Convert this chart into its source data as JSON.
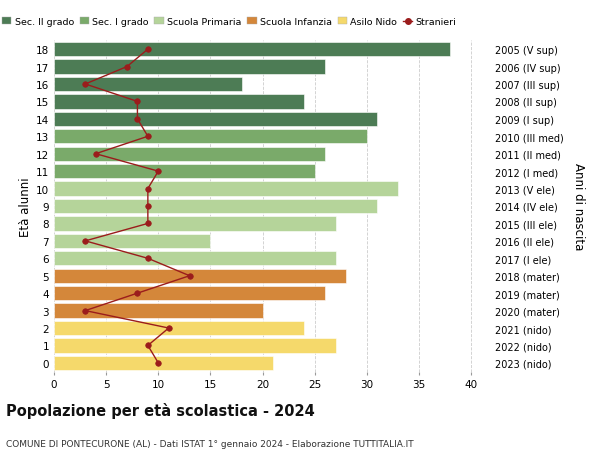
{
  "ages": [
    18,
    17,
    16,
    15,
    14,
    13,
    12,
    11,
    10,
    9,
    8,
    7,
    6,
    5,
    4,
    3,
    2,
    1,
    0
  ],
  "years": [
    "2005 (V sup)",
    "2006 (IV sup)",
    "2007 (III sup)",
    "2008 (II sup)",
    "2009 (I sup)",
    "2010 (III med)",
    "2011 (II med)",
    "2012 (I med)",
    "2013 (V ele)",
    "2014 (IV ele)",
    "2015 (III ele)",
    "2016 (II ele)",
    "2017 (I ele)",
    "2018 (mater)",
    "2019 (mater)",
    "2020 (mater)",
    "2021 (nido)",
    "2022 (nido)",
    "2023 (nido)"
  ],
  "bar_values": [
    38,
    26,
    18,
    24,
    31,
    30,
    26,
    25,
    33,
    31,
    27,
    15,
    27,
    28,
    26,
    20,
    24,
    27,
    21
  ],
  "bar_colors": [
    "#4d7c55",
    "#4d7c55",
    "#4d7c55",
    "#4d7c55",
    "#4d7c55",
    "#7aaa6a",
    "#7aaa6a",
    "#7aaa6a",
    "#b5d49a",
    "#b5d49a",
    "#b5d49a",
    "#b5d49a",
    "#b5d49a",
    "#d4873a",
    "#d4873a",
    "#d4873a",
    "#f5d96b",
    "#f5d96b",
    "#f5d96b"
  ],
  "stranieri_values": [
    9,
    7,
    3,
    8,
    8,
    9,
    4,
    10,
    9,
    9,
    9,
    3,
    9,
    13,
    8,
    3,
    11,
    9,
    10
  ],
  "xlim": [
    0,
    42
  ],
  "ylim": [
    -0.5,
    18.5
  ],
  "ylabel_left": "Età alunni",
  "ylabel_right": "Anni di nascita",
  "title1": "Popolazione per età scolastica - 2024",
  "title2": "COMUNE DI PONTECURONE (AL) - Dati ISTAT 1° gennaio 2024 - Elaborazione TUTTITALIA.IT",
  "legend_labels": [
    "Sec. II grado",
    "Sec. I grado",
    "Scuola Primaria",
    "Scuola Infanzia",
    "Asilo Nido",
    "Stranieri"
  ],
  "legend_colors": [
    "#4d7c55",
    "#7aaa6a",
    "#b5d49a",
    "#d4873a",
    "#f5d96b",
    "#a02020"
  ],
  "bar_height": 0.82,
  "background_color": "#ffffff",
  "grid_color": "#cccccc",
  "stranieri_color": "#9b1c1c"
}
